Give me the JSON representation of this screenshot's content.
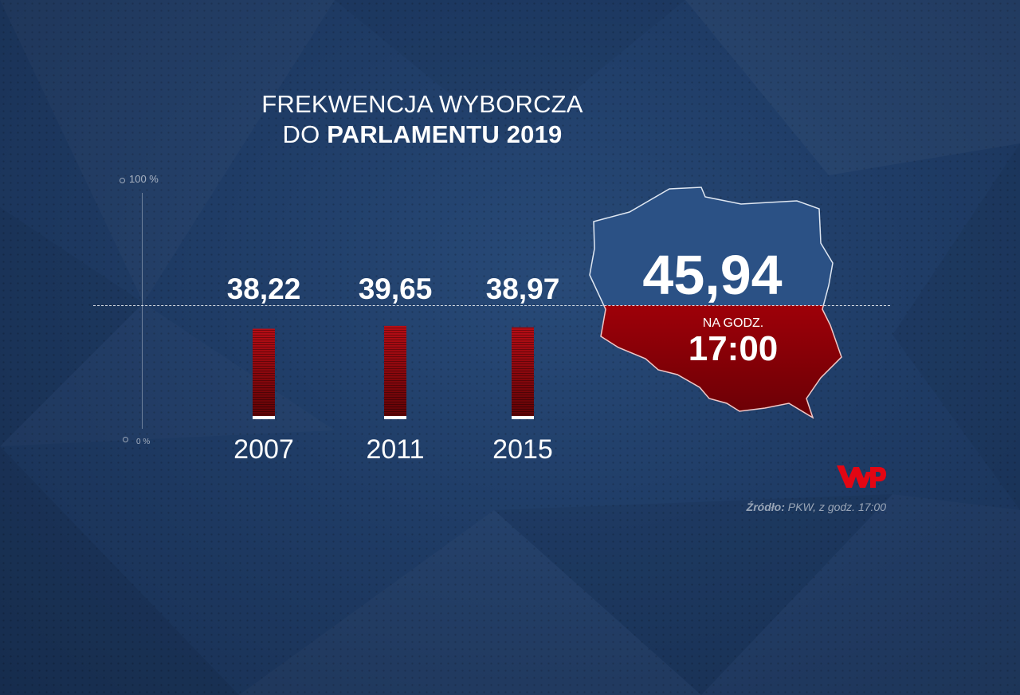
{
  "title": {
    "line1": "FREKWENCJA WYBORCZA",
    "line2_prefix": "DO ",
    "line2_bold": "PARLAMENTU 2019"
  },
  "axis": {
    "top_label": "100 %",
    "bottom_label": "0 %"
  },
  "chart_data": {
    "type": "bar",
    "title": "FREKWENCJA WYBORCZA DO PARLAMENTU 2019",
    "categories": [
      "2007",
      "2011",
      "2015"
    ],
    "values": [
      38.22,
      39.65,
      38.97
    ],
    "value_labels": [
      "38,22",
      "39,65",
      "38,97"
    ],
    "ylim": [
      0,
      100
    ],
    "highlight": {
      "label": "2019",
      "value": 45.94,
      "value_label": "45,94",
      "time_caption": "NA GODZ.",
      "time": "17:00"
    },
    "colors": {
      "bar": "#b80d15",
      "bar_dark": "#5e0306",
      "flag_white": "#2a4f82",
      "flag_red": "#c7000b",
      "background": "#1f3c66"
    }
  },
  "logo": "WP",
  "source": {
    "label": "Źródło:",
    "text": " PKW, z godz. 17:00"
  }
}
